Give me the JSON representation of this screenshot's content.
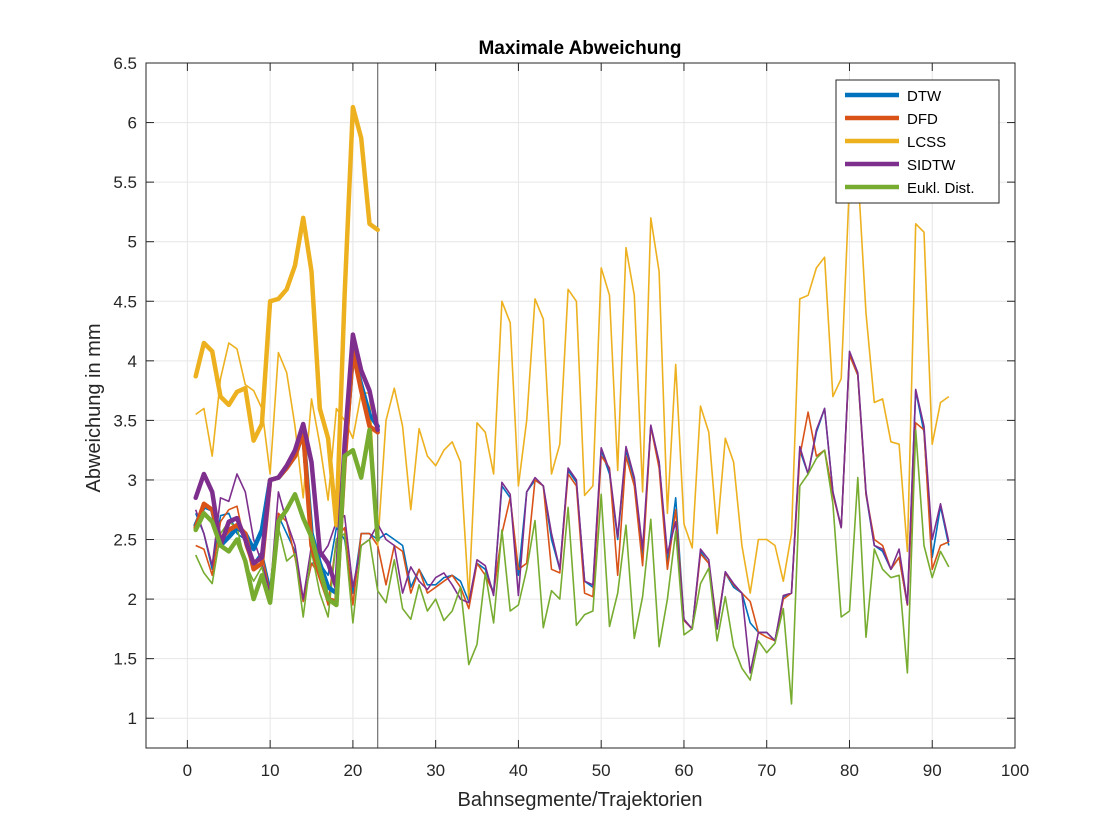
{
  "chart_data": {
    "type": "line",
    "title": "Maximale Abweichung",
    "xlabel": "Bahnsegmente/Trajektorien",
    "ylabel": "Abweichung in mm",
    "xlim": [
      -5,
      100
    ],
    "ylim": [
      0.75,
      6.5
    ],
    "xticks": [
      0,
      10,
      20,
      30,
      40,
      50,
      60,
      70,
      80,
      90,
      100
    ],
    "yticks": [
      1,
      1.5,
      2,
      2.5,
      3,
      3.5,
      4,
      4.5,
      5,
      5.5,
      6,
      6.5
    ],
    "xtick_labels": [
      "0",
      "10",
      "20",
      "30",
      "40",
      "50",
      "60",
      "70",
      "80",
      "90",
      "100"
    ],
    "ytick_labels": [
      "1",
      "1.5",
      "2",
      "2.5",
      "3",
      "3.5",
      "4",
      "4.5",
      "5",
      "5.5",
      "6",
      "6.5"
    ],
    "grid": true,
    "legend_position": "top-right",
    "vline_x": 23,
    "series": [
      {
        "name": "DTW",
        "color": "#0072BD",
        "thick_x": [
          1,
          2,
          3,
          4,
          5,
          6,
          7,
          8,
          9,
          10,
          11,
          12,
          13,
          14,
          15,
          16,
          17,
          18,
          19,
          20,
          21,
          22,
          23
        ],
        "thick_y": [
          2.62,
          2.78,
          2.75,
          2.45,
          2.52,
          2.6,
          2.55,
          2.42,
          2.58,
          3.0,
          3.02,
          3.1,
          3.2,
          3.4,
          2.55,
          2.3,
          2.1,
          2.05,
          3.2,
          4.05,
          3.8,
          3.55,
          3.45
        ],
        "thin_x": [
          1,
          2,
          3,
          4,
          5,
          6,
          7,
          8,
          9,
          10,
          11,
          12,
          13,
          14,
          15,
          16,
          17,
          18,
          19,
          20,
          21,
          22,
          23,
          24,
          25,
          26,
          27,
          28,
          29,
          30,
          31,
          32,
          33,
          34,
          35,
          36,
          37,
          38,
          39,
          40,
          41,
          42,
          43,
          44,
          45,
          46,
          47,
          48,
          49,
          50,
          51,
          52,
          53,
          54,
          55,
          56,
          57,
          58,
          59,
          60,
          61,
          62,
          63,
          64,
          65,
          66,
          67,
          68,
          69,
          70,
          71,
          72,
          73,
          74,
          75,
          76,
          77,
          78,
          79,
          80,
          81,
          82,
          83,
          84,
          85,
          86,
          87,
          88,
          89,
          90,
          91,
          92
        ],
        "thin_y": [
          2.72,
          2.55,
          2.25,
          2.7,
          2.72,
          2.55,
          2.5,
          2.3,
          2.4,
          2.1,
          2.7,
          2.55,
          2.4,
          1.98,
          2.3,
          2.3,
          2.2,
          2.6,
          2.5,
          2.05,
          2.55,
          2.55,
          2.5,
          2.55,
          2.5,
          2.45,
          2.1,
          2.25,
          2.12,
          2.12,
          2.18,
          2.2,
          2.15,
          1.98,
          2.3,
          2.25,
          2.05,
          2.95,
          2.85,
          2.2,
          2.9,
          3.0,
          2.95,
          2.5,
          2.25,
          3.08,
          2.98,
          2.15,
          2.1,
          3.25,
          3.05,
          2.5,
          3.25,
          3.0,
          2.35,
          3.45,
          3.15,
          2.3,
          2.85,
          1.82,
          1.75,
          2.4,
          2.3,
          1.75,
          2.22,
          2.1,
          2.05,
          1.8,
          1.72,
          1.72,
          1.65,
          2.02,
          2.05,
          3.25,
          3.05,
          3.4,
          3.6,
          2.9,
          2.6,
          4.05,
          3.88,
          2.88,
          2.45,
          2.4,
          2.25,
          2.35,
          1.95,
          3.75,
          3.4,
          2.35,
          2.78,
          2.45
        ]
      },
      {
        "name": "DFD",
        "color": "#D95319",
        "thick_x": [
          1,
          2,
          3,
          4,
          5,
          6,
          7,
          8,
          9,
          10,
          11,
          12,
          13,
          14,
          15,
          16,
          17,
          18,
          19,
          20,
          21,
          22,
          23
        ],
        "thick_y": [
          2.6,
          2.8,
          2.75,
          2.5,
          2.58,
          2.62,
          2.55,
          2.25,
          2.3,
          3.0,
          3.02,
          3.1,
          3.2,
          3.4,
          2.45,
          2.2,
          2.0,
          1.98,
          3.15,
          4.08,
          3.75,
          3.45,
          3.4
        ],
        "thin_x": [
          1,
          2,
          3,
          4,
          5,
          6,
          7,
          8,
          9,
          10,
          11,
          12,
          13,
          14,
          15,
          16,
          17,
          18,
          19,
          20,
          21,
          22,
          23,
          24,
          25,
          26,
          27,
          28,
          29,
          30,
          31,
          32,
          33,
          34,
          35,
          36,
          37,
          38,
          39,
          40,
          41,
          42,
          43,
          44,
          45,
          46,
          47,
          48,
          49,
          50,
          51,
          52,
          53,
          54,
          55,
          56,
          57,
          58,
          59,
          60,
          61,
          62,
          63,
          64,
          65,
          66,
          67,
          68,
          69,
          70,
          71,
          72,
          73,
          74,
          75,
          76,
          77,
          78,
          79,
          80,
          81,
          82,
          83,
          84,
          85,
          86,
          87,
          88,
          89,
          90,
          91,
          92
        ],
        "thin_y": [
          2.45,
          2.42,
          2.2,
          2.65,
          2.75,
          2.78,
          2.45,
          2.25,
          2.38,
          2.05,
          2.72,
          2.65,
          2.35,
          1.98,
          2.3,
          2.2,
          1.95,
          2.5,
          2.6,
          1.95,
          2.55,
          2.55,
          2.45,
          2.12,
          2.45,
          2.4,
          2.05,
          2.25,
          2.05,
          2.1,
          2.15,
          2.2,
          2.1,
          1.92,
          2.3,
          2.2,
          2.05,
          2.55,
          2.85,
          2.25,
          2.3,
          3.0,
          2.95,
          2.25,
          2.22,
          3.05,
          2.95,
          2.05,
          2.02,
          3.2,
          3.1,
          2.2,
          3.2,
          2.95,
          2.28,
          3.45,
          3.1,
          2.25,
          2.75,
          1.82,
          1.75,
          2.38,
          2.3,
          1.78,
          2.22,
          2.12,
          2.05,
          1.98,
          1.72,
          1.68,
          1.65,
          2.0,
          2.05,
          3.2,
          3.57,
          3.2,
          3.25,
          2.88,
          2.6,
          4.05,
          3.88,
          2.88,
          2.5,
          2.45,
          2.25,
          2.35,
          1.95,
          3.48,
          3.42,
          2.25,
          2.45,
          2.48
        ]
      },
      {
        "name": "LCSS",
        "color": "#EDB120",
        "thick_x": [
          1,
          2,
          3,
          4,
          5,
          6,
          7,
          8,
          9,
          10,
          11,
          12,
          13,
          14,
          15,
          16,
          17,
          18,
          19,
          20,
          21,
          22,
          23
        ],
        "thick_y": [
          3.87,
          4.15,
          4.08,
          3.7,
          3.63,
          3.74,
          3.77,
          3.33,
          3.47,
          4.5,
          4.52,
          4.6,
          4.8,
          5.2,
          4.75,
          3.6,
          3.35,
          2.62,
          4.55,
          6.13,
          5.87,
          5.15,
          5.1
        ],
        "thin_x": [
          1,
          2,
          3,
          4,
          5,
          6,
          7,
          8,
          9,
          10,
          11,
          12,
          13,
          14,
          15,
          16,
          17,
          18,
          19,
          20,
          21,
          22,
          23,
          24,
          25,
          26,
          27,
          28,
          29,
          30,
          31,
          32,
          33,
          34,
          35,
          36,
          37,
          38,
          39,
          40,
          41,
          42,
          43,
          44,
          45,
          46,
          47,
          48,
          49,
          50,
          51,
          52,
          53,
          54,
          55,
          56,
          57,
          58,
          59,
          60,
          61,
          62,
          63,
          64,
          65,
          66,
          67,
          68,
          69,
          70,
          71,
          72,
          73,
          74,
          75,
          76,
          77,
          78,
          79,
          80,
          81,
          82,
          83,
          84,
          85,
          86,
          87,
          88,
          89,
          90,
          91,
          92
        ],
        "thin_y": [
          3.55,
          3.6,
          3.2,
          3.85,
          4.15,
          4.1,
          3.8,
          3.75,
          3.6,
          3.05,
          4.07,
          3.9,
          3.45,
          2.85,
          3.68,
          3.3,
          2.83,
          3.6,
          3.5,
          3.35,
          3.73,
          3.73,
          2.45,
          3.5,
          3.77,
          3.45,
          2.75,
          3.43,
          3.2,
          3.12,
          3.25,
          3.32,
          3.15,
          2.0,
          3.48,
          3.4,
          3.05,
          4.5,
          4.32,
          2.95,
          3.5,
          4.52,
          4.35,
          3.05,
          3.3,
          4.6,
          4.5,
          2.87,
          2.95,
          4.78,
          4.55,
          3.08,
          4.95,
          4.55,
          2.9,
          5.2,
          4.75,
          2.72,
          3.97,
          2.63,
          2.43,
          3.62,
          3.4,
          2.55,
          3.35,
          3.15,
          2.45,
          2.05,
          2.5,
          2.5,
          2.45,
          2.15,
          2.55,
          4.52,
          4.55,
          4.78,
          4.87,
          3.7,
          3.85,
          5.5,
          5.6,
          4.4,
          3.65,
          3.68,
          3.32,
          3.3,
          2.4,
          5.15,
          5.08,
          3.3,
          3.65,
          3.7
        ]
      },
      {
        "name": "SIDTW",
        "color": "#7E2F8E",
        "thick_x": [
          1,
          2,
          3,
          4,
          5,
          6,
          7,
          8,
          9,
          10,
          11,
          12,
          13,
          14,
          15,
          16,
          17,
          18,
          19,
          20,
          21,
          22,
          23
        ],
        "thick_y": [
          2.85,
          3.05,
          2.9,
          2.45,
          2.65,
          2.68,
          2.5,
          2.3,
          2.35,
          3.0,
          3.02,
          3.12,
          3.25,
          3.47,
          3.15,
          2.4,
          2.3,
          2.1,
          3.3,
          4.22,
          3.92,
          3.75,
          3.42
        ],
        "thin_x": [
          1,
          2,
          3,
          4,
          5,
          6,
          7,
          8,
          9,
          10,
          11,
          12,
          13,
          14,
          15,
          16,
          17,
          18,
          19,
          20,
          21,
          22,
          23,
          24,
          25,
          26,
          27,
          28,
          29,
          30,
          31,
          32,
          33,
          34,
          35,
          36,
          37,
          38,
          39,
          40,
          41,
          42,
          43,
          44,
          45,
          46,
          47,
          48,
          49,
          50,
          51,
          52,
          53,
          54,
          55,
          56,
          57,
          58,
          59,
          60,
          61,
          62,
          63,
          64,
          65,
          66,
          67,
          68,
          69,
          70,
          71,
          72,
          73,
          74,
          75,
          76,
          77,
          78,
          79,
          80,
          81,
          82,
          83,
          84,
          85,
          86,
          87,
          88,
          89,
          90,
          91,
          92
        ],
        "thin_y": [
          2.75,
          2.55,
          2.28,
          2.85,
          2.82,
          3.05,
          2.9,
          2.5,
          2.3,
          2.05,
          2.9,
          2.65,
          2.45,
          2.0,
          2.45,
          2.35,
          2.45,
          2.65,
          2.7,
          2.1,
          2.45,
          2.5,
          2.63,
          2.5,
          2.45,
          2.05,
          2.27,
          2.15,
          2.08,
          2.18,
          2.22,
          2.12,
          2.0,
          1.97,
          2.33,
          2.28,
          2.03,
          2.98,
          2.88,
          2.03,
          2.9,
          3.02,
          2.95,
          2.55,
          2.25,
          3.1,
          3.0,
          2.15,
          2.12,
          3.27,
          3.08,
          2.52,
          3.28,
          3.02,
          2.42,
          3.46,
          3.15,
          2.38,
          2.65,
          1.83,
          1.75,
          2.42,
          2.33,
          1.75,
          2.23,
          2.13,
          2.05,
          1.38,
          1.72,
          1.72,
          1.65,
          2.03,
          2.05,
          3.28,
          3.05,
          3.42,
          3.6,
          2.9,
          2.6,
          4.08,
          3.9,
          2.9,
          2.45,
          2.42,
          2.25,
          2.42,
          1.96,
          3.76,
          3.45,
          2.5,
          2.8,
          2.48
        ]
      },
      {
        "name": "Eukl. Dist.",
        "color": "#77AC30",
        "thick_x": [
          1,
          2,
          3,
          4,
          5,
          6,
          7,
          8,
          9,
          10,
          11,
          12,
          13,
          14,
          15,
          16,
          17,
          18,
          19,
          20,
          21,
          22,
          23
        ],
        "thick_y": [
          2.58,
          2.72,
          2.65,
          2.45,
          2.4,
          2.5,
          2.32,
          2.0,
          2.2,
          1.97,
          2.65,
          2.75,
          2.88,
          2.68,
          2.52,
          2.25,
          2.0,
          1.95,
          3.2,
          3.25,
          3.02,
          3.42,
          2.5
        ],
        "thin_x": [
          1,
          2,
          3,
          4,
          5,
          6,
          7,
          8,
          9,
          10,
          11,
          12,
          13,
          14,
          15,
          16,
          17,
          18,
          19,
          20,
          21,
          22,
          23,
          24,
          25,
          26,
          27,
          28,
          29,
          30,
          31,
          32,
          33,
          34,
          35,
          36,
          37,
          38,
          39,
          40,
          41,
          42,
          43,
          44,
          45,
          46,
          47,
          48,
          49,
          50,
          51,
          52,
          53,
          54,
          55,
          56,
          57,
          58,
          59,
          60,
          61,
          62,
          63,
          64,
          65,
          66,
          67,
          68,
          69,
          70,
          71,
          72,
          73,
          74,
          75,
          76,
          77,
          78,
          79,
          80,
          81,
          82,
          83,
          84,
          85,
          86,
          87,
          88,
          89,
          90,
          91,
          92
        ],
        "thin_y": [
          2.37,
          2.22,
          2.13,
          2.55,
          2.65,
          2.6,
          2.3,
          2.15,
          2.27,
          1.97,
          2.6,
          2.32,
          2.38,
          1.85,
          2.4,
          2.05,
          1.85,
          2.5,
          2.55,
          1.8,
          2.45,
          2.5,
          2.07,
          1.97,
          2.33,
          1.92,
          1.83,
          2.12,
          1.9,
          2.0,
          1.82,
          1.9,
          2.1,
          1.45,
          1.62,
          2.22,
          1.8,
          2.58,
          1.9,
          1.95,
          2.25,
          2.66,
          1.76,
          2.07,
          2.0,
          2.77,
          1.78,
          1.87,
          1.9,
          2.88,
          1.77,
          2.05,
          2.62,
          1.67,
          2.02,
          2.67,
          1.6,
          2.0,
          2.57,
          1.7,
          1.75,
          2.13,
          2.26,
          1.65,
          2.02,
          1.6,
          1.42,
          1.32,
          1.65,
          1.55,
          1.63,
          1.92,
          1.12,
          2.95,
          3.05,
          3.18,
          3.25,
          2.8,
          1.85,
          1.9,
          3.02,
          1.68,
          2.42,
          2.25,
          2.18,
          2.2,
          1.38,
          3.42,
          2.45,
          2.18,
          2.4,
          2.27
        ]
      }
    ]
  }
}
